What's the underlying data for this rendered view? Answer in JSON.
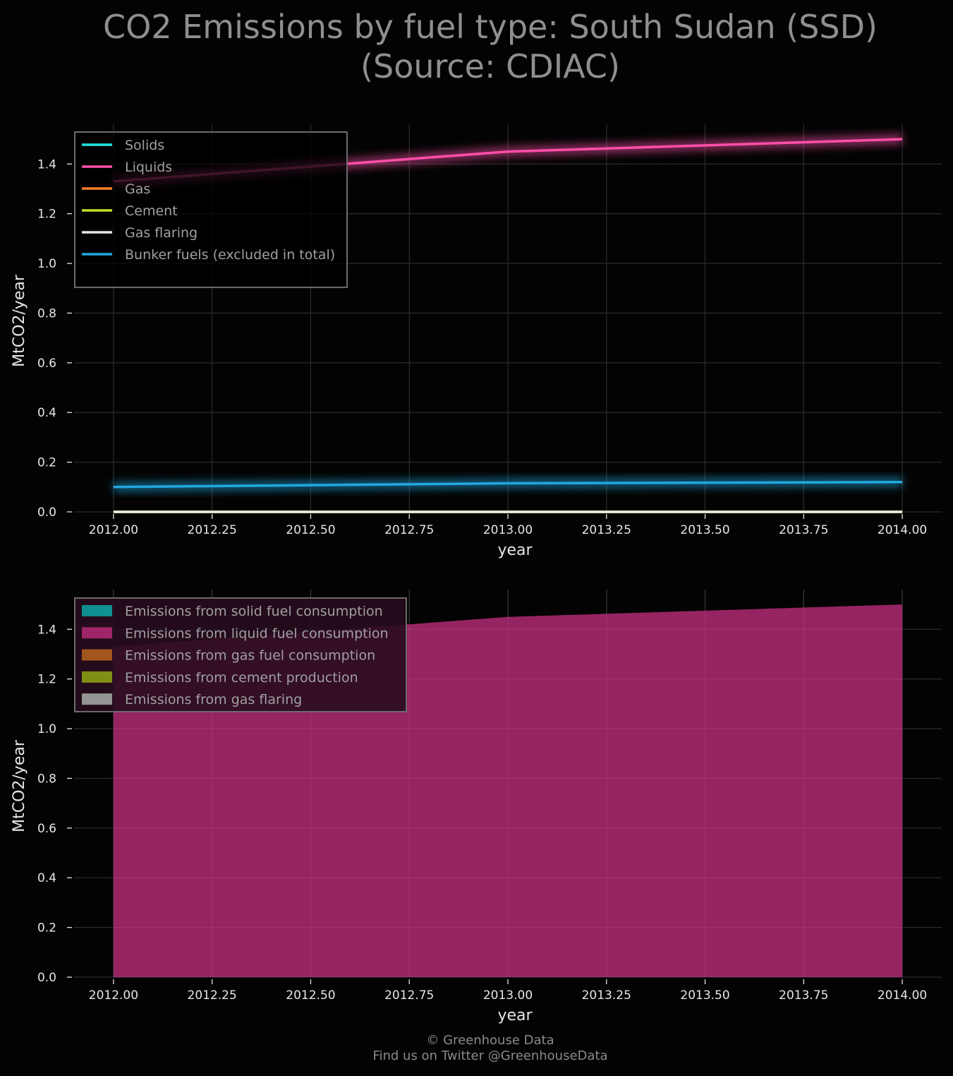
{
  "title_line1": "CO2 Emissions by fuel type: South Sudan (SSD)",
  "title_line2": "(Source: CDIAC)",
  "footer_line1": "© Greenhouse Data",
  "footer_line2": "Find us on Twitter @GreenhouseData",
  "chart_data": [
    {
      "type": "line",
      "xlabel": "year",
      "ylabel": "MtCO2/year",
      "xlim": [
        2011.9,
        2014.1
      ],
      "ylim": [
        0.0,
        1.56
      ],
      "xticks": [
        2012.0,
        2012.25,
        2012.5,
        2012.75,
        2013.0,
        2013.25,
        2013.5,
        2013.75,
        2014.0
      ],
      "xtick_labels": [
        "2012.00",
        "2012.25",
        "2012.50",
        "2012.75",
        "2013.00",
        "2013.25",
        "2013.50",
        "2013.75",
        "2014.00"
      ],
      "yticks": [
        0.0,
        0.2,
        0.4,
        0.6,
        0.8,
        1.0,
        1.2,
        1.4
      ],
      "ytick_labels": [
        "0.0",
        "0.2",
        "0.4",
        "0.6",
        "0.8",
        "1.0",
        "1.2",
        "1.4"
      ],
      "grid": true,
      "legend_position": "top-left",
      "x": [
        2012,
        2013,
        2014
      ],
      "series": [
        {
          "name": "Solids",
          "values": [
            0.0,
            0.0,
            0.0
          ],
          "color": "#1ee3e3"
        },
        {
          "name": "Liquids",
          "values": [
            1.33,
            1.45,
            1.5
          ],
          "color": "#ff4fa8"
        },
        {
          "name": "Gas",
          "values": [
            0.0,
            0.0,
            0.0
          ],
          "color": "#ff7f2a"
        },
        {
          "name": "Cement",
          "values": [
            0.0,
            0.0,
            0.0
          ],
          "color": "#c6dd2a"
        },
        {
          "name": "Gas flaring",
          "values": [
            0.0,
            0.0,
            0.0
          ],
          "color": "#e6e6e6"
        },
        {
          "name": "Bunker fuels (excluded in total)",
          "values": [
            0.1,
            0.115,
            0.12
          ],
          "color": "#22a8e0"
        }
      ]
    },
    {
      "type": "area",
      "stacked": true,
      "xlabel": "year",
      "ylabel": "MtCO2/year",
      "xlim": [
        2011.9,
        2014.1
      ],
      "ylim": [
        0.0,
        1.56
      ],
      "xticks": [
        2012.0,
        2012.25,
        2012.5,
        2012.75,
        2013.0,
        2013.25,
        2013.5,
        2013.75,
        2014.0
      ],
      "xtick_labels": [
        "2012.00",
        "2012.25",
        "2012.50",
        "2012.75",
        "2013.00",
        "2013.25",
        "2013.50",
        "2013.75",
        "2014.00"
      ],
      "yticks": [
        0.0,
        0.2,
        0.4,
        0.6,
        0.8,
        1.0,
        1.2,
        1.4
      ],
      "ytick_labels": [
        "0.0",
        "0.2",
        "0.4",
        "0.6",
        "0.8",
        "1.0",
        "1.2",
        "1.4"
      ],
      "grid": true,
      "legend_position": "top-left",
      "x": [
        2012,
        2013,
        2014
      ],
      "series": [
        {
          "name": "Emissions from solid fuel consumption",
          "values": [
            0.0,
            0.0,
            0.0
          ],
          "color": "#0f8f8f"
        },
        {
          "name": "Emissions from liquid fuel consumption",
          "values": [
            1.33,
            1.45,
            1.5
          ],
          "color": "#9e2668"
        },
        {
          "name": "Emissions from gas fuel consumption",
          "values": [
            0.0,
            0.0,
            0.0
          ],
          "color": "#a0561e"
        },
        {
          "name": "Emissions from cement production",
          "values": [
            0.0,
            0.0,
            0.0
          ],
          "color": "#7f8f14"
        },
        {
          "name": "Emissions from gas flaring",
          "values": [
            0.0,
            0.0,
            0.0
          ],
          "color": "#959595"
        }
      ]
    }
  ]
}
